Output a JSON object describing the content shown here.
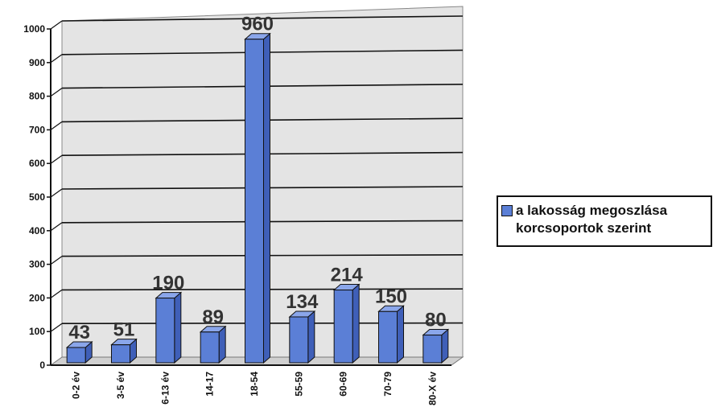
{
  "chart_data": {
    "type": "bar",
    "categories": [
      "0-2 év",
      "3-5 év",
      "6-13 év",
      "14-17",
      "18-54",
      "55-59",
      "60-69",
      "70-79",
      "80-X év"
    ],
    "series": [
      {
        "name": "a lakosság megoszlása\nkorcsoportok szerint",
        "values": [
          43,
          51,
          190,
          89,
          960,
          134,
          214,
          150,
          80
        ]
      }
    ],
    "data_labels": [
      "43",
      "51",
      "190",
      "89",
      "960",
      "134",
      "214",
      "150",
      "80"
    ],
    "ylim": [
      0,
      1000
    ],
    "yticks": [
      0,
      100,
      200,
      300,
      400,
      500,
      600,
      700,
      800,
      900,
      1000
    ],
    "ytick_labels": [
      "0",
      "100",
      "200",
      "300",
      "400",
      "500",
      "600",
      "700",
      "800",
      "900",
      "1000"
    ],
    "grid": true,
    "legend_position": "right",
    "bar_color": "#5b7fd6",
    "wall_color": "#e4e4e4"
  }
}
